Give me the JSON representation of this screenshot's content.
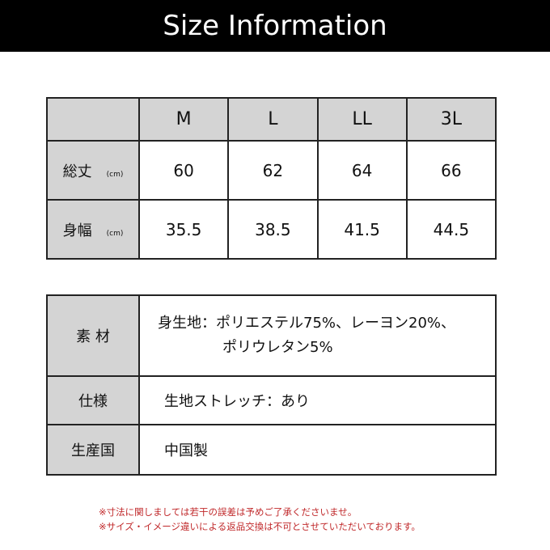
{
  "title": "Size Information",
  "size_table": {
    "sizes": [
      "M",
      "L",
      "LL",
      "3L"
    ],
    "rows": [
      {
        "label": "総丈",
        "unit": "(cm)",
        "values": [
          "60",
          "62",
          "64",
          "66"
        ]
      },
      {
        "label": "身幅",
        "unit": "(cm)",
        "values": [
          "35.5",
          "38.5",
          "41.5",
          "44.5"
        ]
      }
    ]
  },
  "spec_table": [
    {
      "label": "素 材",
      "lines": [
        "身生地：ポリエステル75%、レーヨン20%、",
        "ポリウレタン5%"
      ]
    },
    {
      "label": "仕様",
      "lines": [
        "生地ストレッチ：あり"
      ]
    },
    {
      "label": "生産国",
      "lines": [
        "中国製"
      ]
    }
  ],
  "notes": [
    "※寸法に関しましては若干の誤差は予めご了承くださいませ。",
    "※サイズ・イメージ違いによる返品交換は不可とさせていただいております。"
  ],
  "colors": {
    "banner": "#000000",
    "header_cell": "#d4d4d4",
    "note": "#c0282a"
  }
}
